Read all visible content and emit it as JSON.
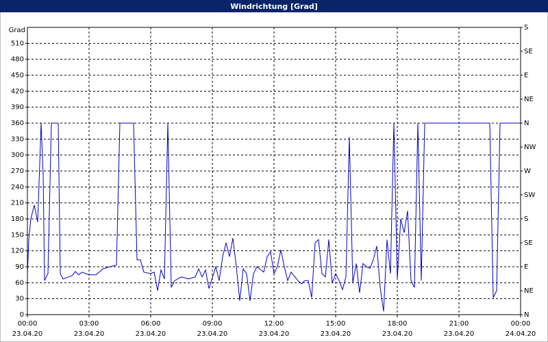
{
  "chart_data": {
    "type": "line",
    "title": "Windrichtung [Grad]",
    "y_label": "Grad",
    "xlim": [
      "23.04.20 00:00",
      "24.04.20 00:00"
    ],
    "xticks": [
      {
        "time": "00:00",
        "date": "23.04.20"
      },
      {
        "time": "03:00",
        "date": "23.04.20"
      },
      {
        "time": "06:00",
        "date": "23.04.20"
      },
      {
        "time": "09:00",
        "date": "23.04.20"
      },
      {
        "time": "12:00",
        "date": "23.04.20"
      },
      {
        "time": "15:00",
        "date": "23.04.20"
      },
      {
        "time": "18:00",
        "date": "23.04.20"
      },
      {
        "time": "21:00",
        "date": "23.04.20"
      },
      {
        "time": "00:00",
        "date": "24.04.20"
      }
    ],
    "ylim": [
      0,
      540
    ],
    "yticks": [
      0,
      30,
      60,
      90,
      120,
      150,
      180,
      210,
      240,
      270,
      300,
      330,
      360,
      390,
      420,
      450,
      480,
      510
    ],
    "y2lim": [
      0,
      540
    ],
    "y2ticks": [
      {
        "value": 0,
        "label": "N"
      },
      {
        "value": 45,
        "label": "NE"
      },
      {
        "value": 90,
        "label": "E"
      },
      {
        "value": 135,
        "label": "SE"
      },
      {
        "value": 180,
        "label": "S"
      },
      {
        "value": 225,
        "label": "SW"
      },
      {
        "value": 270,
        "label": "W"
      },
      {
        "value": 315,
        "label": "NW"
      },
      {
        "value": 360,
        "label": "N"
      },
      {
        "value": 405,
        "label": "NE"
      },
      {
        "value": 450,
        "label": "E"
      },
      {
        "value": 495,
        "label": "SE"
      },
      {
        "value": 540,
        "label": "S"
      }
    ],
    "grid": true,
    "x": [
      "23.04.20 00:00",
      "23.04.20 00:04",
      "23.04.20 00:10",
      "23.04.20 00:20",
      "23.04.20 00:30",
      "23.04.20 00:36",
      "23.04.20 00:40",
      "23.04.20 00:46",
      "23.04.20 00:50",
      "23.04.20 01:00",
      "23.04.20 01:10",
      "23.04.20 01:30",
      "23.04.20 01:36",
      "23.04.20 01:44",
      "23.04.20 02:00",
      "23.04.20 02:10",
      "23.04.20 02:20",
      "23.04.20 02:30",
      "23.04.20 02:40",
      "23.04.20 02:50",
      "23.04.20 03:00",
      "23.04.20 03:20",
      "23.04.20 03:30",
      "23.04.20 03:40",
      "23.04.20 04:00",
      "23.04.20 04:20",
      "23.04.20 04:30",
      "23.04.20 05:10",
      "23.04.20 05:20",
      "23.04.20 05:30",
      "23.04.20 05:40",
      "23.04.20 06:00",
      "23.04.20 06:10",
      "23.04.20 06:20",
      "23.04.20 06:30",
      "23.04.20 06:40",
      "23.04.20 06:50",
      "23.04.20 07:00",
      "23.04.20 07:10",
      "23.04.20 07:30",
      "23.04.20 07:50",
      "23.04.20 08:10",
      "23.04.20 08:20",
      "23.04.20 08:30",
      "23.04.20 08:40",
      "23.04.20 08:50",
      "23.04.20 09:10",
      "23.04.20 09:20",
      "23.04.20 09:30",
      "23.04.20 09:40",
      "23.04.20 09:50",
      "23.04.20 10:00",
      "23.04.20 10:10",
      "23.04.20 10:20",
      "23.04.20 10:30",
      "23.04.20 10:40",
      "23.04.20 10:50",
      "23.04.20 11:00",
      "23.04.20 11:10",
      "23.04.20 11:30",
      "23.04.20 11:40",
      "23.04.20 11:50",
      "23.04.20 12:00",
      "23.04.20 12:10",
      "23.04.20 12:20",
      "23.04.20 12:30",
      "23.04.20 12:40",
      "23.04.20 12:50",
      "23.04.20 13:10",
      "23.04.20 13:20",
      "23.04.20 13:30",
      "23.04.20 13:40",
      "23.04.20 13:50",
      "23.04.20 14:00",
      "23.04.20 14:10",
      "23.04.20 14:20",
      "23.04.20 14:30",
      "23.04.20 14:40",
      "23.04.20 14:50",
      "23.04.20 15:00",
      "23.04.20 15:10",
      "23.04.20 15:20",
      "23.04.20 15:30",
      "23.04.20 15:40",
      "23.04.20 15:50",
      "23.04.20 16:00",
      "23.04.20 16:10",
      "23.04.20 16:20",
      "23.04.20 16:30",
      "23.04.20 16:40",
      "23.04.20 16:50",
      "23.04.20 17:00",
      "23.04.20 17:10",
      "23.04.20 17:20",
      "23.04.20 17:30",
      "23.04.20 17:40",
      "23.04.20 17:50",
      "23.04.20 18:00",
      "23.04.20 18:10",
      "23.04.20 18:20",
      "23.04.20 18:30",
      "23.04.20 18:40",
      "23.04.20 18:50",
      "23.04.20 19:00",
      "23.04.20 19:10",
      "23.04.20 19:20",
      "23.04.20 19:30",
      "23.04.20 22:30",
      "23.04.20 22:40",
      "23.04.20 22:50",
      "23.04.20 23:00",
      "24.04.20 00:00"
    ],
    "series": [
      {
        "name": "Windrichtung",
        "color": "#0000c8",
        "values": [
          75,
          141,
          180,
          206,
          174,
          283,
          360,
          264,
          64,
          77,
          360,
          360,
          77,
          67,
          71,
          73,
          81,
          75,
          80,
          77,
          75,
          75,
          80,
          86,
          90,
          93,
          360,
          360,
          103,
          103,
          80,
          77,
          80,
          45,
          84,
          67,
          360,
          51,
          64,
          71,
          67,
          71,
          86,
          71,
          84,
          49,
          90,
          64,
          109,
          135,
          109,
          144,
          90,
          26,
          86,
          77,
          26,
          77,
          90,
          80,
          109,
          118,
          77,
          90,
          122,
          90,
          64,
          80,
          64,
          58,
          64,
          64,
          32,
          135,
          141,
          77,
          71,
          141,
          60,
          77,
          64,
          47,
          71,
          334,
          60,
          96,
          41,
          96,
          90,
          87,
          103,
          129,
          51,
          6,
          141,
          77,
          360,
          67,
          180,
          154,
          195,
          64,
          51,
          360,
          64,
          360,
          360,
          360,
          32,
          45,
          360,
          360
        ]
      }
    ]
  }
}
